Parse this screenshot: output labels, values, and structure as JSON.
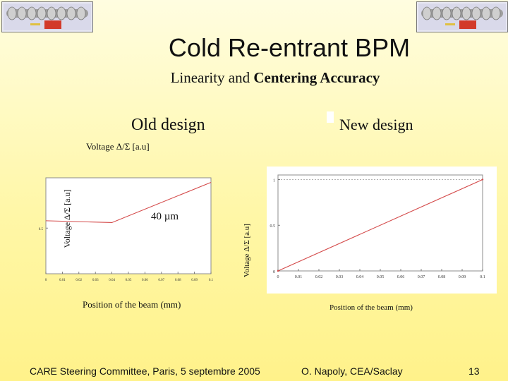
{
  "slide": {
    "title": "Cold Re-entrant BPM",
    "subtitle_plain": "Linearity and ",
    "subtitle_bold": "Centering Accuracy"
  },
  "old": {
    "label": "Old design",
    "top_axis_label": "Voltage Δ/Σ [a.u]",
    "y_axis_label": "Voltage Δ/Σ [a.u]",
    "annotation": "40 µm",
    "x_axis_label": "Position of the beam (mm)",
    "x_ticks": [
      "0",
      "0.01",
      "0.02",
      "0.03",
      "0.04",
      "0.05",
      "0.06",
      "0.07",
      "0.08",
      "0.09",
      "0.1"
    ],
    "y_ticks": [
      "0.5"
    ]
  },
  "new": {
    "label": "New design",
    "y_axis_label": "Voltage Δ/Σ [a.u]",
    "x_axis_label": "Position of the beam (mm)",
    "x_ticks": [
      "0",
      "0.01",
      "0.02",
      "0.03",
      "0.04",
      "0.05",
      "0.06",
      "0.07",
      "0.08",
      "0.09",
      "0.1"
    ],
    "y_ticks": [
      "1",
      "0.5",
      "0"
    ]
  },
  "footer": {
    "left": "CARE Steering Committee, Paris, 5 septembre 2005",
    "center": "O. Napoly, CEA/Saclay",
    "page": "13"
  },
  "chart_data": [
    {
      "type": "line",
      "series": [
        {
          "x": [
            0,
            0.04,
            0.1
          ],
          "y": [
            0.58,
            0.56,
            1.0
          ]
        }
      ],
      "xlim": [
        0,
        0.1
      ],
      "ylim": [
        0,
        1.05
      ]
    },
    {
      "type": "line",
      "series": [
        {
          "x": [
            0,
            0.1
          ],
          "y": [
            0,
            1.0
          ]
        }
      ],
      "xlim": [
        0,
        0.1
      ],
      "ylim": [
        0,
        1.05
      ]
    }
  ],
  "colors": {
    "curve": "#d44a4a",
    "frame": "#8c8c8c"
  }
}
